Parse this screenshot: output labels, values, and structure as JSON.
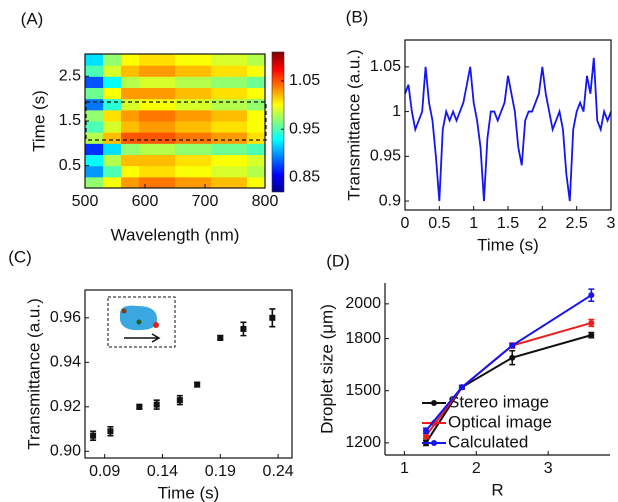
{
  "chart_data": [
    {
      "type": "heatmap",
      "panel_label": "(A)",
      "x_label": "Wavelength (nm)",
      "y_label": "Time (s)",
      "xlim": [
        500,
        800
      ],
      "xticks": [
        500,
        600,
        700,
        800
      ],
      "ylim": [
        0,
        3
      ],
      "yticks": [
        0.5,
        1.5,
        2.5
      ],
      "colormap": "jet",
      "clim": [
        0.82,
        1.11
      ],
      "cticks": [
        0.85,
        0.95,
        1.05
      ],
      "x": [
        515,
        545,
        575,
        605,
        635,
        665,
        695,
        725,
        755,
        785
      ],
      "y": [
        0.125,
        0.375,
        0.625,
        0.875,
        1.125,
        1.375,
        1.625,
        1.875,
        2.125,
        2.375,
        2.625,
        2.875
      ],
      "z": [
        [
          0.97,
          1.0,
          1.03,
          1.04,
          1.04,
          1.03,
          1.03,
          1.02,
          1.02,
          1.0
        ],
        [
          0.9,
          0.95,
          1.0,
          1.01,
          1.01,
          1.0,
          1.0,
          0.99,
          0.99,
          0.98
        ],
        [
          0.93,
          0.98,
          1.02,
          1.02,
          1.02,
          1.01,
          1.01,
          1.0,
          1.0,
          0.99
        ],
        [
          0.87,
          0.92,
          0.97,
          0.98,
          0.98,
          0.97,
          0.97,
          0.96,
          0.96,
          0.95
        ],
        [
          0.98,
          1.02,
          1.05,
          1.05,
          1.05,
          1.04,
          1.04,
          1.03,
          1.03,
          1.01
        ],
        [
          0.95,
          0.99,
          1.02,
          1.03,
          1.03,
          1.02,
          1.02,
          1.01,
          1.01,
          1.0
        ],
        [
          0.97,
          1.01,
          1.03,
          1.04,
          1.04,
          1.03,
          1.03,
          1.02,
          1.02,
          1.0
        ],
        [
          0.89,
          0.94,
          0.99,
          1.0,
          1.0,
          0.99,
          0.99,
          0.98,
          0.98,
          0.97
        ],
        [
          0.96,
          1.0,
          1.03,
          1.03,
          1.03,
          1.02,
          1.02,
          1.01,
          1.01,
          1.0
        ],
        [
          0.88,
          0.93,
          0.98,
          0.99,
          0.99,
          0.98,
          0.98,
          0.97,
          0.97,
          0.96
        ],
        [
          0.95,
          0.99,
          1.02,
          1.03,
          1.03,
          1.02,
          1.02,
          1.01,
          1.01,
          1.0
        ],
        [
          0.92,
          0.97,
          1.0,
          1.01,
          1.01,
          1.0,
          1.0,
          0.99,
          0.99,
          0.98
        ]
      ]
    },
    {
      "type": "line",
      "panel_label": "(B)",
      "x_label": "Time (s)",
      "y_label": "Transmittance (a.u.)",
      "xlim": [
        0,
        3
      ],
      "xticks": [
        0,
        0.5,
        1,
        1.5,
        2,
        2.5,
        3
      ],
      "ylim": [
        0.89,
        1.08
      ],
      "yticks": [
        0.9,
        0.95,
        1,
        1.05
      ],
      "x": [
        0,
        0.05,
        0.1,
        0.15,
        0.2,
        0.25,
        0.3,
        0.35,
        0.4,
        0.45,
        0.5,
        0.55,
        0.6,
        0.65,
        0.7,
        0.75,
        0.8,
        0.85,
        0.9,
        0.95,
        1,
        1.05,
        1.1,
        1.15,
        1.2,
        1.25,
        1.3,
        1.35,
        1.4,
        1.45,
        1.5,
        1.55,
        1.6,
        1.65,
        1.7,
        1.75,
        1.8,
        1.85,
        1.9,
        1.95,
        2,
        2.05,
        2.1,
        2.15,
        2.2,
        2.25,
        2.3,
        2.35,
        2.4,
        2.45,
        2.5,
        2.55,
        2.6,
        2.65,
        2.7,
        2.75,
        2.8,
        2.85,
        2.9,
        2.95,
        3
      ],
      "series": [
        {
          "color": "#1515f0",
          "values": [
            1.02,
            1.03,
            1.0,
            0.98,
            0.99,
            1.0,
            1.05,
            1.01,
            0.99,
            0.95,
            0.9,
            0.98,
            1.0,
            0.99,
            1.0,
            0.99,
            1.0,
            1.01,
            1.03,
            1.05,
            1.01,
            0.99,
            0.96,
            0.9,
            0.97,
            1.0,
            1.0,
            0.99,
            1.0,
            1.01,
            1.04,
            1.02,
            1.0,
            0.96,
            0.94,
            0.99,
            1.0,
            1.0,
            1.01,
            1.02,
            1.05,
            1.02,
            1.0,
            0.98,
            0.99,
            1.0,
            0.98,
            0.93,
            0.9,
            0.98,
            1.0,
            1.01,
            1.0,
            1.04,
            1.02,
            1.06,
            0.99,
            0.98,
            1.0,
            0.99,
            1.0
          ]
        }
      ]
    },
    {
      "type": "scatter",
      "panel_label": "(C)",
      "x_label": "Time (s)",
      "y_label": "Transmittance (a.u.)",
      "xlim": [
        0.073,
        0.252
      ],
      "xticks": [
        0.09,
        0.14,
        0.19,
        0.24
      ],
      "ylim": [
        0.897,
        0.9725
      ],
      "yticks": [
        {
          "value": 0.9,
          "label": "0.90"
        },
        0.92,
        0.94,
        0.96
      ],
      "x": [
        0.08,
        0.095,
        0.12,
        0.135,
        0.155,
        0.17,
        0.19,
        0.21,
        0.235
      ],
      "series": [
        {
          "color": "#111111",
          "values": [
            0.907,
            0.909,
            0.92,
            0.921,
            0.923,
            0.93,
            0.951,
            0.955,
            0.96
          ],
          "errors": [
            0.002,
            0.002,
            0.001,
            0.002,
            0.002,
            0.001,
            0.001,
            0.003,
            0.004
          ]
        }
      ]
    },
    {
      "type": "line",
      "panel_label": "(D)",
      "x_label": "R",
      "y_label": "Droplet size (μm)",
      "xlim": [
        0.73,
        3.86
      ],
      "xticks": [
        1,
        2,
        3
      ],
      "ylim": [
        1130,
        2120
      ],
      "yticks": [
        1200,
        1500,
        1800,
        2000
      ],
      "x": [
        1.3,
        1.8,
        2.5,
        3.6
      ],
      "series": [
        {
          "name": "Stereo image",
          "color": "#111111",
          "values": [
            1200,
            1520,
            1690,
            1820
          ],
          "errors": [
            15,
            10,
            40,
            15
          ]
        },
        {
          "name": "Optical image",
          "color": "#ee1c1c",
          "values": [
            1240,
            1520,
            1760,
            1890
          ],
          "errors": [
            15,
            10,
            15,
            20
          ]
        },
        {
          "name": "Calculated",
          "color": "#1515f0",
          "values": [
            1270,
            1520,
            1760,
            2050
          ],
          "errors": [
            15,
            10,
            10,
            35
          ]
        }
      ]
    }
  ]
}
